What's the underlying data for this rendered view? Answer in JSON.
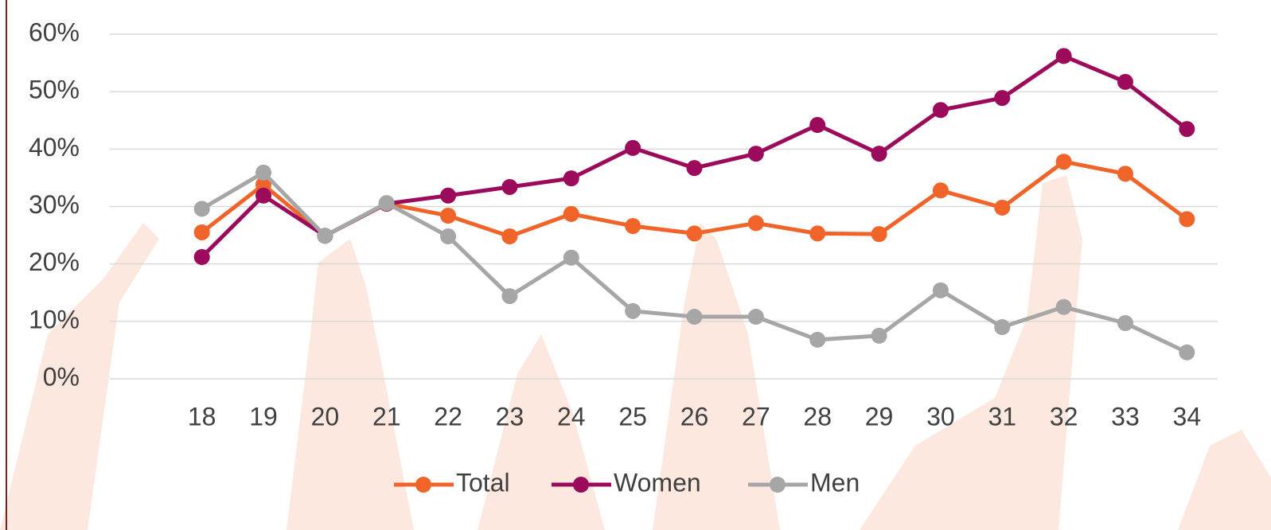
{
  "chart_data": {
    "type": "line",
    "categories": [
      "18",
      "19",
      "20",
      "21",
      "22",
      "23",
      "24",
      "25",
      "26",
      "27",
      "28",
      "29",
      "30",
      "31",
      "32",
      "33",
      "34"
    ],
    "series": [
      {
        "name": "Total",
        "color": "#f0642a",
        "values": [
          25.5,
          33.8,
          24.9,
          30.5,
          28.4,
          24.8,
          28.7,
          26.6,
          25.3,
          27.1,
          25.3,
          25.2,
          32.8,
          29.8,
          37.8,
          35.7,
          27.8
        ]
      },
      {
        "name": "Women",
        "color": "#9c0b5b",
        "values": [
          21.2,
          31.9,
          24.9,
          30.5,
          31.9,
          33.4,
          34.9,
          40.2,
          36.7,
          39.2,
          44.2,
          39.2,
          46.8,
          48.9,
          56.2,
          51.7,
          43.5
        ]
      },
      {
        "name": "Men",
        "color": "#a6a6a6",
        "values": [
          29.6,
          35.9,
          24.9,
          30.6,
          24.8,
          14.4,
          21.1,
          11.8,
          10.8,
          10.8,
          6.8,
          7.5,
          15.4,
          9.0,
          12.5,
          9.7,
          4.6
        ]
      }
    ],
    "ylim": [
      0,
      60
    ],
    "yticks": [
      {
        "value": 0,
        "label": "0%"
      },
      {
        "value": 10,
        "label": "10%"
      },
      {
        "value": 20,
        "label": "20%"
      },
      {
        "value": 30,
        "label": "30%"
      },
      {
        "value": 40,
        "label": "40%"
      },
      {
        "value": 50,
        "label": "50%"
      },
      {
        "value": 60,
        "label": "60%"
      }
    ],
    "grid": true,
    "legend": "bottom"
  }
}
